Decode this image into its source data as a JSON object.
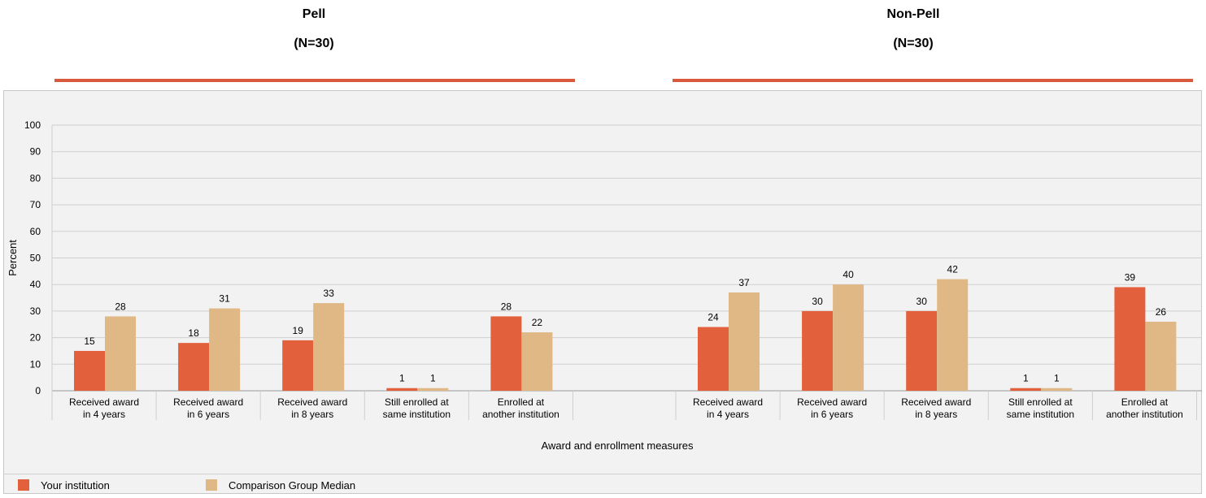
{
  "groups": [
    {
      "title": "Pell",
      "subtitle": "(N=30)"
    },
    {
      "title": "Non-Pell",
      "subtitle": "(N=30)"
    }
  ],
  "colors": {
    "your_institution": "#e3603c",
    "comparison": "#dfb886",
    "rule": "#d9593c"
  },
  "legend": [
    {
      "label": "Your institution",
      "color": "#e3603c"
    },
    {
      "label": "Comparison Group Median",
      "color": "#dfb886"
    }
  ],
  "chart_data": {
    "type": "bar",
    "ylabel": "Percent",
    "xlabel": "Award and enrollment measures",
    "ylim": [
      0,
      100
    ],
    "yticks": [
      0,
      10,
      20,
      30,
      40,
      50,
      60,
      70,
      80,
      90,
      100
    ],
    "grid": true,
    "legend_position": "bottom-left",
    "panels": [
      {
        "group": "Pell",
        "categories": [
          [
            "Received award",
            "in 4 years"
          ],
          [
            "Received award",
            "in 6 years"
          ],
          [
            "Received award",
            "in 8 years"
          ],
          [
            "Still enrolled at",
            "same institution"
          ],
          [
            "Enrolled at",
            "another institution"
          ]
        ],
        "series": [
          {
            "name": "Your institution",
            "values": [
              15,
              18,
              19,
              1,
              28
            ]
          },
          {
            "name": "Comparison Group Median",
            "values": [
              28,
              31,
              33,
              1,
              22
            ]
          }
        ]
      },
      {
        "group": "Non-Pell",
        "categories": [
          [
            "Received award",
            "in 4 years"
          ],
          [
            "Received award",
            "in 6 years"
          ],
          [
            "Received award",
            "in 8 years"
          ],
          [
            "Still enrolled at",
            "same institution"
          ],
          [
            "Enrolled at",
            "another institution"
          ]
        ],
        "series": [
          {
            "name": "Your institution",
            "values": [
              24,
              30,
              30,
              1,
              39
            ]
          },
          {
            "name": "Comparison Group Median",
            "values": [
              37,
              40,
              42,
              1,
              26
            ]
          }
        ]
      }
    ]
  }
}
